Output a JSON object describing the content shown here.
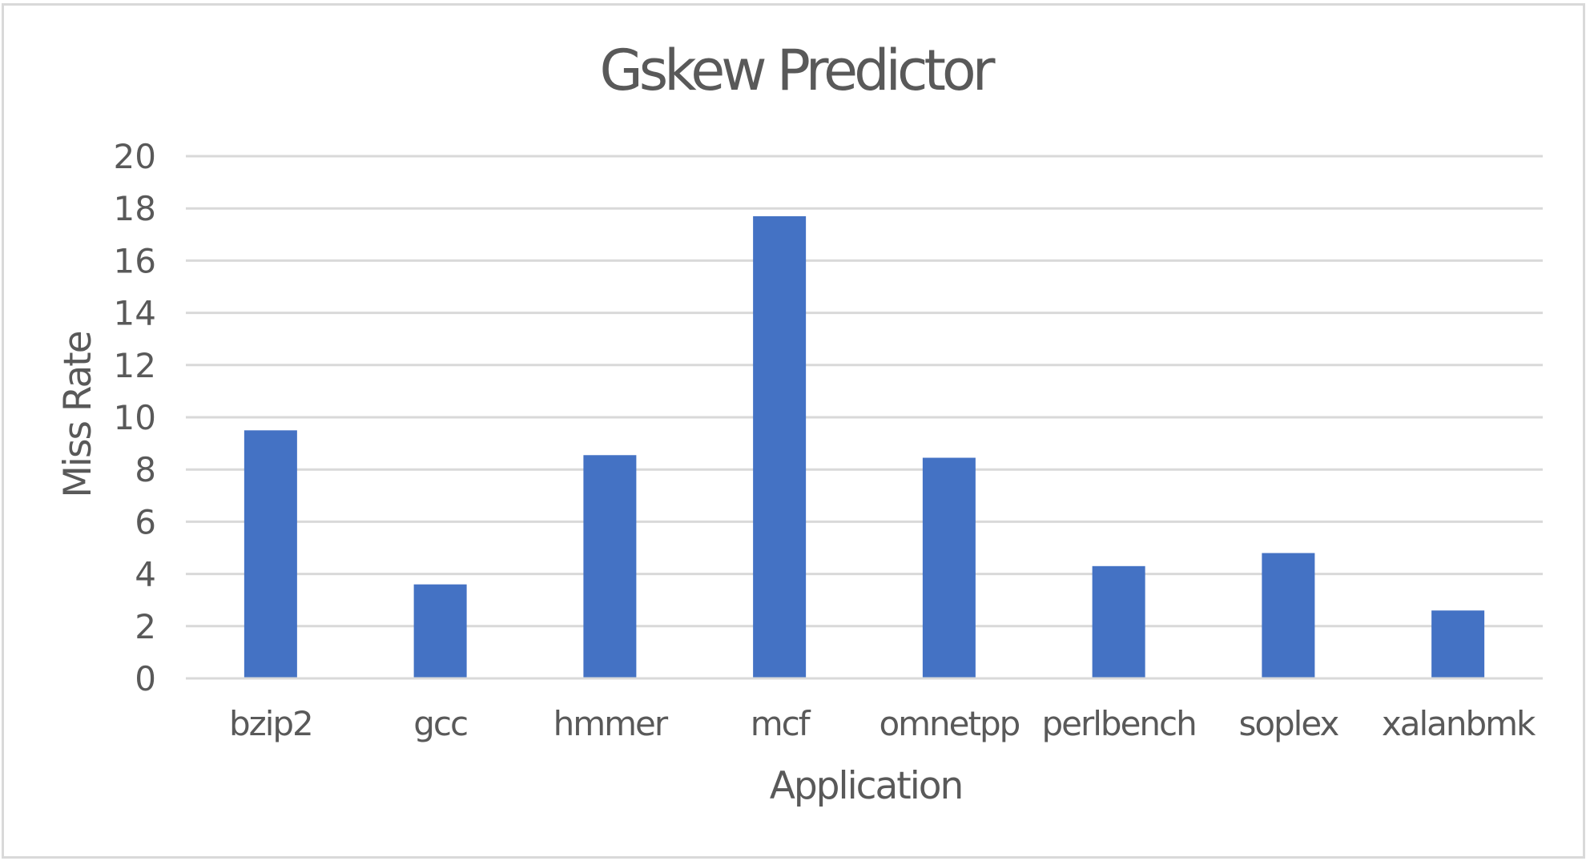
{
  "chart_data": {
    "type": "bar",
    "title": "Gskew Predictor",
    "xlabel": "Application",
    "ylabel": "Miss Rate",
    "categories": [
      "bzip2",
      "gcc",
      "hmmer",
      "mcf",
      "omnetpp",
      "perlbench",
      "soplex",
      "xalanbmk"
    ],
    "values": [
      9.5,
      3.6,
      8.55,
      17.7,
      8.45,
      4.3,
      4.8,
      2.6
    ],
    "ylim": [
      0,
      20
    ],
    "yticks": [
      0,
      2,
      4,
      6,
      8,
      10,
      12,
      14,
      16,
      18,
      20
    ],
    "grid": true,
    "legend": "none",
    "bar_color": "#4472C4",
    "grid_color": "#d9d9d9",
    "text_color": "#595959"
  }
}
